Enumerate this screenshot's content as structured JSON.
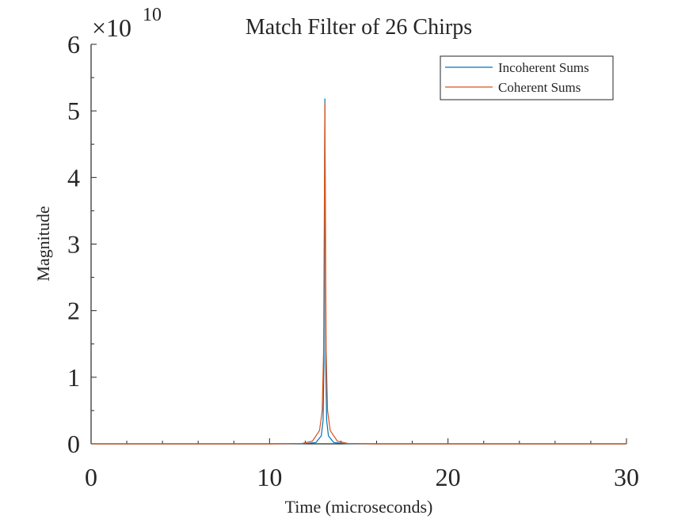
{
  "chart_data": {
    "type": "line",
    "title": "Match Filter of 26 Chirps",
    "xlabel": "Time (microseconds)",
    "ylabel": "Magnitude",
    "exponent_base": "×10",
    "exponent_power": "10",
    "xlim": [
      0,
      30
    ],
    "ylim": [
      0,
      6
    ],
    "x_ticks": [
      0,
      10,
      20,
      30
    ],
    "y_ticks": [
      0,
      1,
      2,
      3,
      4,
      5,
      6
    ],
    "grid": false,
    "legend_position": "top-right",
    "series": [
      {
        "name": "Incoherent Sums",
        "color": "#0072BD",
        "x": [
          0,
          10,
          12,
          12.6,
          12.9,
          13.0,
          13.05,
          13.1,
          13.15,
          13.2,
          13.3,
          13.6,
          14.2,
          16,
          20,
          30
        ],
        "y": [
          0,
          0,
          0.003,
          0.02,
          0.12,
          0.35,
          1.2,
          5.18,
          1.2,
          0.35,
          0.12,
          0.02,
          0.003,
          0,
          0,
          0
        ]
      },
      {
        "name": "Coherent Sums",
        "color": "#D95319",
        "x": [
          0,
          10,
          11.8,
          12.4,
          12.8,
          12.95,
          13.03,
          13.1,
          13.17,
          13.25,
          13.4,
          13.8,
          14.4,
          16,
          20,
          30
        ],
        "y": [
          0,
          0,
          0.005,
          0.04,
          0.2,
          0.5,
          1.4,
          5.12,
          1.4,
          0.5,
          0.2,
          0.04,
          0.005,
          0,
          0,
          0
        ]
      }
    ]
  }
}
